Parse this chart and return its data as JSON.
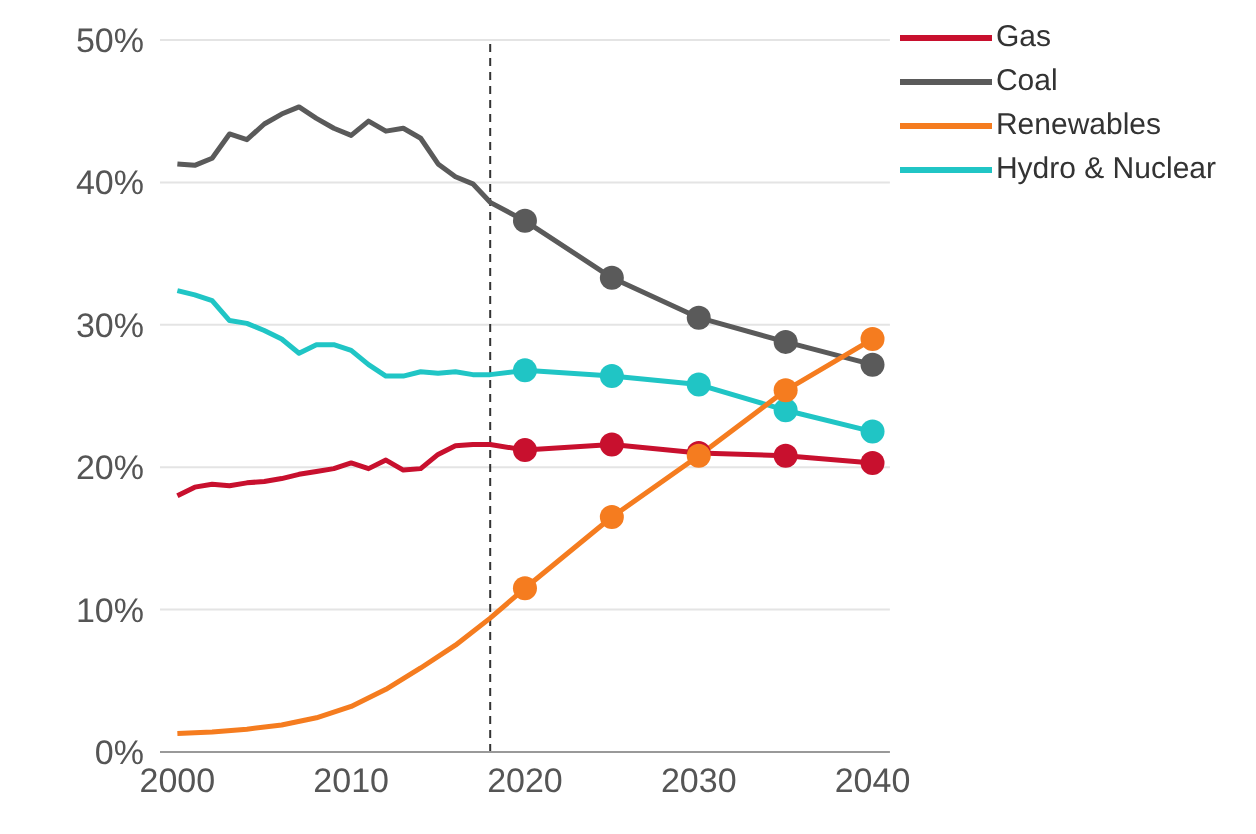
{
  "chart_data": {
    "type": "line",
    "xlim": [
      1999,
      2041
    ],
    "xticks": [
      2000,
      2010,
      2020,
      2030,
      2040
    ],
    "ylim": [
      0,
      50
    ],
    "yticks": [
      {
        "value": 0,
        "label": "0%"
      },
      {
        "value": 10,
        "label": "10%"
      },
      {
        "value": 20,
        "label": "20%"
      },
      {
        "value": 30,
        "label": "30%"
      },
      {
        "value": 40,
        "label": "40%"
      },
      {
        "value": 50,
        "label": "50%"
      }
    ],
    "grid": "y",
    "legend": "top right",
    "ref_lines": [
      {
        "axis": "x",
        "value": 2018,
        "line_style": "dashed",
        "color": "#333333"
      }
    ],
    "series": [
      {
        "name": "Gas",
        "color": "#c8102e",
        "marker": "none",
        "x": [
          2000,
          2001,
          2002,
          2003,
          2004,
          2005,
          2006,
          2007,
          2008,
          2009,
          2010,
          2011,
          2012,
          2013,
          2014,
          2015,
          2016,
          2017,
          2018,
          2020
        ],
        "values": [
          18.0,
          18.6,
          18.8,
          18.7,
          18.9,
          19.0,
          19.2,
          19.5,
          19.7,
          19.9,
          20.3,
          19.9,
          20.5,
          19.8,
          19.9,
          20.9,
          21.5,
          21.6,
          21.6,
          21.2
        ]
      },
      {
        "name": "Coal",
        "color": "#5a5a5a",
        "marker": "none",
        "x": [
          2000,
          2001,
          2002,
          2003,
          2004,
          2005,
          2006,
          2007,
          2008,
          2009,
          2010,
          2011,
          2012,
          2013,
          2014,
          2015,
          2016,
          2017,
          2018,
          2020
        ],
        "values": [
          41.3,
          41.2,
          41.7,
          43.4,
          43.0,
          44.1,
          44.8,
          45.3,
          44.5,
          43.8,
          43.3,
          44.3,
          43.6,
          43.8,
          43.1,
          41.3,
          40.4,
          39.9,
          38.6,
          37.3
        ]
      },
      {
        "name": "Renewables",
        "color": "#f57c1f",
        "marker": "none",
        "x": [
          2000,
          2002,
          2004,
          2006,
          2008,
          2010,
          2012,
          2014,
          2016,
          2018,
          2020
        ],
        "values": [
          1.3,
          1.4,
          1.6,
          1.9,
          2.4,
          3.2,
          4.4,
          5.9,
          7.5,
          9.4,
          11.5
        ]
      },
      {
        "name": "Hydro & Nuclear",
        "color": "#20c5c5",
        "marker": "none",
        "x": [
          2000,
          2001,
          2002,
          2003,
          2004,
          2005,
          2006,
          2007,
          2008,
          2009,
          2010,
          2011,
          2012,
          2013,
          2014,
          2015,
          2016,
          2017,
          2018,
          2020
        ],
        "values": [
          32.4,
          32.1,
          31.7,
          30.3,
          30.1,
          29.6,
          29.0,
          28.0,
          28.6,
          28.6,
          28.2,
          27.2,
          26.4,
          26.4,
          26.7,
          26.6,
          26.7,
          26.5,
          26.5,
          26.8
        ]
      },
      {
        "color": "#c8102e",
        "marker": "circle",
        "x": [
          2020,
          2025,
          2030,
          2035,
          2040
        ],
        "values": [
          21.2,
          21.6,
          21.0,
          20.8,
          20.3
        ]
      },
      {
        "color": "#5a5a5a",
        "marker": "circle",
        "x": [
          2020,
          2025,
          2030,
          2035,
          2040
        ],
        "values": [
          37.3,
          33.3,
          30.5,
          28.8,
          27.2
        ]
      },
      {
        "color": "#20c5c5",
        "marker": "circle",
        "x": [
          2020,
          2025,
          2030,
          2035,
          2040
        ],
        "values": [
          26.8,
          26.4,
          25.8,
          24.0,
          22.5
        ]
      },
      {
        "color": "#f57c1f",
        "marker": "circle",
        "x": [
          2020,
          2025,
          2030,
          2035,
          2040
        ],
        "values": [
          11.5,
          16.5,
          20.8,
          25.4,
          29.0
        ]
      }
    ]
  }
}
